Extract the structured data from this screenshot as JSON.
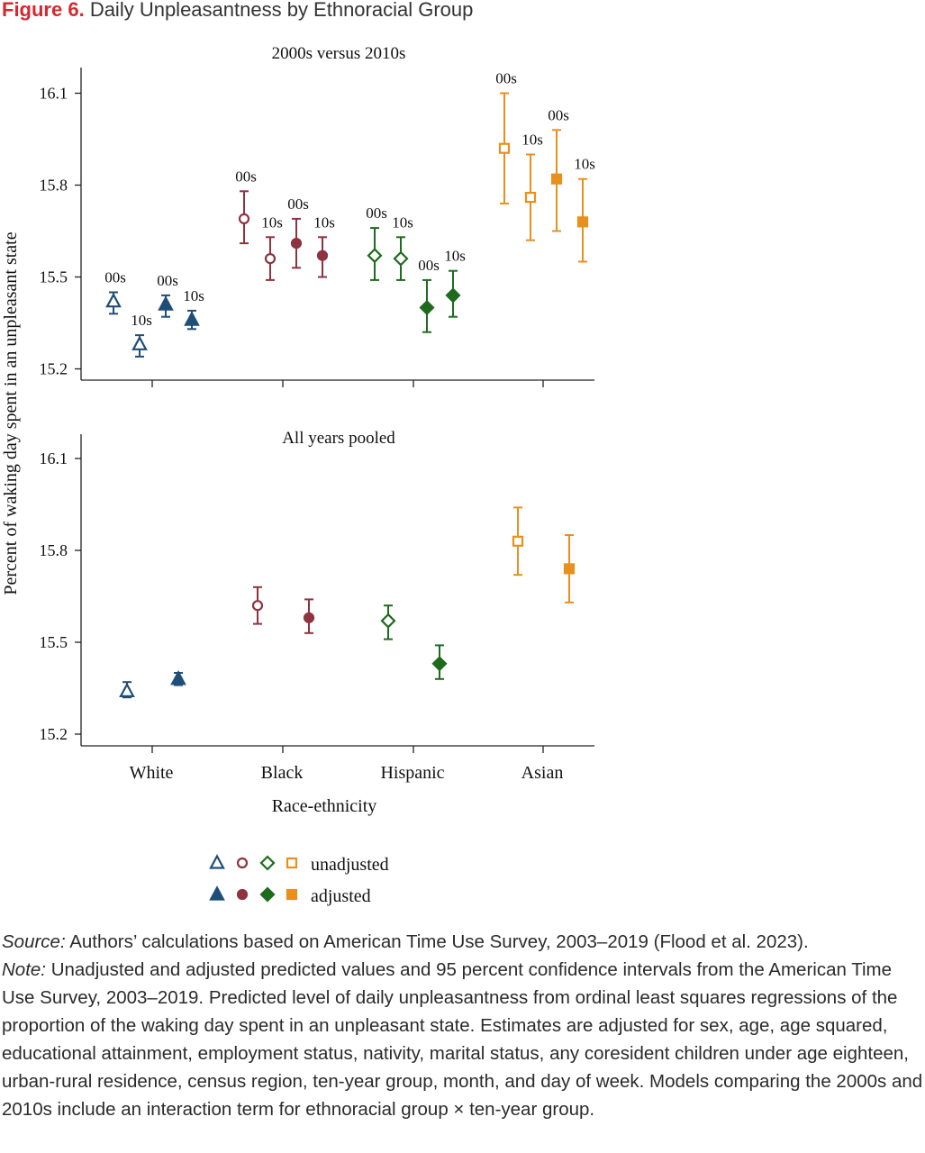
{
  "figure": {
    "label": "Figure 6.",
    "title": "Daily Unpleasantness by Ethnoracial Group"
  },
  "chart_data": {
    "type": "scatter",
    "ylabel": "Percent of waking day spent in an unpleasant state",
    "xlabel": "Race-ethnicity",
    "categories": [
      "White",
      "Black",
      "Hispanic",
      "Asian"
    ],
    "yticks": [
      "16.1",
      "15.8",
      "15.5",
      "15.2"
    ],
    "colors": {
      "White": "#1f4e79",
      "Black": "#8e3340",
      "Hispanic": "#1e6b1e",
      "Asian": "#e8901e"
    },
    "markers": {
      "White": "triangle",
      "Black": "circle",
      "Hispanic": "diamond",
      "Asian": "square"
    },
    "legend": {
      "unadjusted": "unadjusted",
      "adjusted": "adjusted",
      "placement": "bottom"
    },
    "panels": [
      {
        "title": "2000s versus 2010s",
        "ylim": [
          15.16,
          16.18
        ],
        "points": [
          {
            "group": "White",
            "adjusted": false,
            "label": "00s",
            "y": 15.42,
            "lo": 15.38,
            "hi": 15.45
          },
          {
            "group": "White",
            "adjusted": false,
            "label": "10s",
            "y": 15.28,
            "lo": 15.24,
            "hi": 15.31
          },
          {
            "group": "White",
            "adjusted": true,
            "label": "00s",
            "y": 15.41,
            "lo": 15.37,
            "hi": 15.44
          },
          {
            "group": "White",
            "adjusted": true,
            "label": "10s",
            "y": 15.36,
            "lo": 15.33,
            "hi": 15.39
          },
          {
            "group": "Black",
            "adjusted": false,
            "label": "00s",
            "y": 15.69,
            "lo": 15.61,
            "hi": 15.78
          },
          {
            "group": "Black",
            "adjusted": false,
            "label": "10s",
            "y": 15.56,
            "lo": 15.49,
            "hi": 15.63
          },
          {
            "group": "Black",
            "adjusted": true,
            "label": "00s",
            "y": 15.61,
            "lo": 15.53,
            "hi": 15.69
          },
          {
            "group": "Black",
            "adjusted": true,
            "label": "10s",
            "y": 15.57,
            "lo": 15.5,
            "hi": 15.63
          },
          {
            "group": "Hispanic",
            "adjusted": false,
            "label": "00s",
            "y": 15.57,
            "lo": 15.49,
            "hi": 15.66
          },
          {
            "group": "Hispanic",
            "adjusted": false,
            "label": "10s",
            "y": 15.56,
            "lo": 15.49,
            "hi": 15.63
          },
          {
            "group": "Hispanic",
            "adjusted": true,
            "label": "00s",
            "y": 15.4,
            "lo": 15.32,
            "hi": 15.49
          },
          {
            "group": "Hispanic",
            "adjusted": true,
            "label": "10s",
            "y": 15.44,
            "lo": 15.37,
            "hi": 15.52
          },
          {
            "group": "Asian",
            "adjusted": false,
            "label": "00s",
            "y": 15.92,
            "lo": 15.74,
            "hi": 16.1
          },
          {
            "group": "Asian",
            "adjusted": false,
            "label": "10s",
            "y": 15.76,
            "lo": 15.62,
            "hi": 15.9
          },
          {
            "group": "Asian",
            "adjusted": true,
            "label": "00s",
            "y": 15.82,
            "lo": 15.65,
            "hi": 15.98
          },
          {
            "group": "Asian",
            "adjusted": true,
            "label": "10s",
            "y": 15.68,
            "lo": 15.55,
            "hi": 15.82
          }
        ]
      },
      {
        "title": "All years pooled",
        "ylim": [
          15.16,
          16.2
        ],
        "points": [
          {
            "group": "White",
            "adjusted": false,
            "y": 15.34,
            "lo": 15.32,
            "hi": 15.37
          },
          {
            "group": "White",
            "adjusted": true,
            "y": 15.38,
            "lo": 15.36,
            "hi": 15.4
          },
          {
            "group": "Black",
            "adjusted": false,
            "y": 15.62,
            "lo": 15.56,
            "hi": 15.68
          },
          {
            "group": "Black",
            "adjusted": true,
            "y": 15.58,
            "lo": 15.53,
            "hi": 15.64
          },
          {
            "group": "Hispanic",
            "adjusted": false,
            "y": 15.57,
            "lo": 15.51,
            "hi": 15.62
          },
          {
            "group": "Hispanic",
            "adjusted": true,
            "y": 15.43,
            "lo": 15.38,
            "hi": 15.49
          },
          {
            "group": "Asian",
            "adjusted": false,
            "y": 15.83,
            "lo": 15.72,
            "hi": 15.94
          },
          {
            "group": "Asian",
            "adjusted": true,
            "y": 15.74,
            "lo": 15.63,
            "hi": 15.85
          }
        ]
      }
    ]
  },
  "notes": {
    "source_label": "Source:",
    "source_text": " Authors’ calculations based on American Time Use Survey, 2003–2019 (Flood et al. 2023).",
    "note_label": "Note:",
    "note_text": " Unadjusted and adjusted predicted values and 95 percent confidence intervals from the American Time Use Survey, 2003–2019. Predicted level of daily unpleasantness from ordinal least squares regressions of the proportion of the waking day spent in an unpleasant state. Estimates are adjusted for sex, age, age squared, educational attainment, employment status, nativity, marital status, any coresident children under age eighteen, urban-rural residence, census region, ten-year group, month, and day of week. Models comparing the 2000s and 2010s include an interaction term for ethnoracial group × ten-year group."
  }
}
